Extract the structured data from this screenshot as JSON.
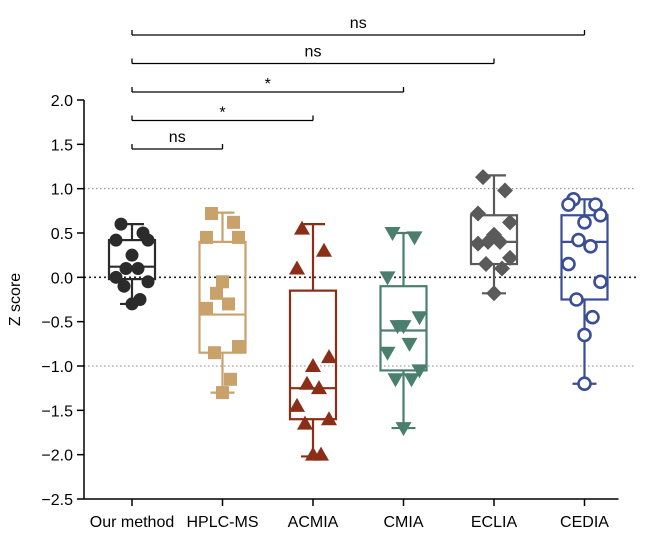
{
  "chart_data": {
    "type": "box",
    "title": "",
    "xlabel": "",
    "ylabel": "Z score",
    "ylim": [
      -2.5,
      2.0
    ],
    "yticks": [
      2.0,
      1.5,
      1.0,
      0.5,
      0.0,
      -0.5,
      -1.0,
      -1.5,
      -2.0,
      -2.5
    ],
    "ytick_labels": [
      "2.0",
      "1.5",
      "1.0",
      "0.5",
      "0.0",
      "−0.5",
      "−1.0",
      "−1.5",
      "−2.0",
      "−2.5"
    ],
    "reference_lines": [
      {
        "y": 1.0,
        "style": "dotted-light"
      },
      {
        "y": 0.0,
        "style": "dotted-bold"
      },
      {
        "y": -1.0,
        "style": "dotted-light"
      }
    ],
    "categories": [
      "Our method",
      "HPLC-MS",
      "ACMIA",
      "CMIA",
      "ECLIA",
      "CEDIA"
    ],
    "series": [
      {
        "name": "Our method",
        "color": "#2b2b2b",
        "marker": "filled-circle",
        "whisker_low": -0.3,
        "q1": -0.02,
        "median": 0.12,
        "q3": 0.42,
        "whisker_high": 0.6,
        "points": [
          0.6,
          0.5,
          0.42,
          0.42,
          0.25,
          0.1,
          0.1,
          0.0,
          -0.05,
          -0.1,
          -0.25,
          -0.3
        ]
      },
      {
        "name": "HPLC-MS",
        "color": "#c9a16b",
        "marker": "filled-square",
        "whisker_low": -1.3,
        "q1": -0.85,
        "median": -0.42,
        "q3": 0.4,
        "whisker_high": 0.73,
        "points": [
          0.72,
          0.62,
          0.45,
          0.45,
          -0.05,
          -0.18,
          -0.3,
          -0.35,
          -0.78,
          -0.85,
          -1.15,
          -1.3
        ]
      },
      {
        "name": "ACMIA",
        "color": "#8b2e17",
        "marker": "filled-triangle-up",
        "whisker_low": -2.02,
        "q1": -1.6,
        "median": -1.25,
        "q3": -0.15,
        "whisker_high": 0.6,
        "points": [
          0.55,
          0.3,
          0.1,
          -0.9,
          -1.0,
          -1.2,
          -1.25,
          -1.45,
          -1.6,
          -1.65,
          -2.0,
          -2.0
        ]
      },
      {
        "name": "CMIA",
        "color": "#4a7f6e",
        "marker": "filled-triangle-down",
        "whisker_low": -1.7,
        "q1": -1.05,
        "median": -0.6,
        "q3": -0.1,
        "whisker_high": 0.5,
        "points": [
          0.5,
          0.45,
          0.0,
          -0.45,
          -0.55,
          -0.55,
          -0.75,
          -0.85,
          -1.05,
          -1.15,
          -1.15,
          -1.7
        ]
      },
      {
        "name": "ECLIA",
        "color": "#5a5a5a",
        "marker": "filled-diamond",
        "whisker_low": -0.18,
        "q1": 0.15,
        "median": 0.4,
        "q3": 0.7,
        "whisker_high": 1.15,
        "points": [
          1.13,
          0.98,
          0.72,
          0.62,
          0.48,
          0.4,
          0.4,
          0.38,
          0.22,
          0.15,
          0.1,
          -0.18
        ]
      },
      {
        "name": "CEDIA",
        "color": "#3a4e97",
        "marker": "open-circle",
        "whisker_low": -1.2,
        "q1": -0.25,
        "median": 0.4,
        "q3": 0.7,
        "whisker_high": 0.88,
        "points": [
          0.88,
          0.82,
          0.82,
          0.7,
          0.62,
          0.42,
          0.35,
          0.15,
          -0.05,
          -0.25,
          -0.45,
          -0.65,
          -1.2
        ]
      }
    ],
    "significance": [
      {
        "from": "Our method",
        "to": "HPLC-MS",
        "label": "ns"
      },
      {
        "from": "Our method",
        "to": "ACMIA",
        "label": "*"
      },
      {
        "from": "Our method",
        "to": "CMIA",
        "label": "*"
      },
      {
        "from": "Our method",
        "to": "ECLIA",
        "label": "ns"
      },
      {
        "from": "Our method",
        "to": "CEDIA",
        "label": "ns"
      }
    ]
  }
}
